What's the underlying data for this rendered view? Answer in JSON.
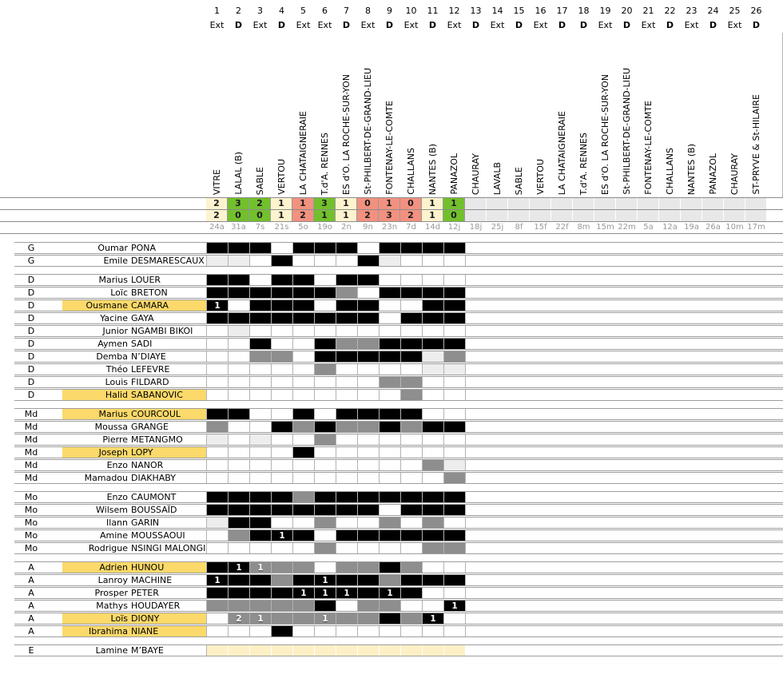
{
  "palette": {
    "win_green": "#72c02c",
    "draw_cream": "#fdf3cf",
    "loss_salmon": "#f29180",
    "empty_gray": "#e8e8e8",
    "name_highlight_yellow": "#fbd96a",
    "squad_row_cream": "#fdf0c6",
    "cell_full_black": "#000000",
    "cell_sub_gray": "#8e8e8e",
    "cell_light_gray": "#ededed"
  },
  "cell_codes": {
    "B": "black cell",
    "G": "gray cell",
    "L": "light-gray cell",
    "Y": "cream cell",
    "": "white cell",
    "digit_suffix": "goal count shown in cell"
  },
  "columns": [
    {
      "n": "1",
      "venue": "Ext",
      "opponent": "VITRE",
      "score_top": "2",
      "score_bottom": "2",
      "result": "draw",
      "date": "24a"
    },
    {
      "n": "2",
      "venue": "D",
      "opponent": "LALAL (B)",
      "score_top": "3",
      "score_bottom": "0",
      "result": "win",
      "date": "31a"
    },
    {
      "n": "3",
      "venue": "Ext",
      "opponent": "SABLE",
      "score_top": "2",
      "score_bottom": "0",
      "result": "win",
      "date": "7s"
    },
    {
      "n": "4",
      "venue": "D",
      "opponent": "VERTOU",
      "score_top": "1",
      "score_bottom": "1",
      "result": "draw",
      "date": "21s"
    },
    {
      "n": "5",
      "venue": "Ext",
      "opponent": "LA CHATAIGNERAIE",
      "score_top": "1",
      "score_bottom": "2",
      "result": "loss",
      "date": "5o"
    },
    {
      "n": "6",
      "venue": "Ext",
      "opponent": "T.d'A. RENNES",
      "score_top": "3",
      "score_bottom": "1",
      "result": "win",
      "date": "19o"
    },
    {
      "n": "7",
      "venue": "D",
      "opponent": "ES d'O. LA ROCHE-SUR-YON",
      "score_top": "1",
      "score_bottom": "1",
      "result": "draw",
      "date": "2n"
    },
    {
      "n": "8",
      "venue": "Ext",
      "opponent": "St-PHILBERT-DE-GRAND-LIEU",
      "score_top": "0",
      "score_bottom": "2",
      "result": "loss",
      "date": "9n"
    },
    {
      "n": "9",
      "venue": "D",
      "opponent": "FONTENAY-LE-COMTE",
      "score_top": "1",
      "score_bottom": "3",
      "result": "loss",
      "date": "23n"
    },
    {
      "n": "10",
      "venue": "Ext",
      "opponent": "CHALLANS",
      "score_top": "0",
      "score_bottom": "2",
      "result": "loss",
      "date": "7d"
    },
    {
      "n": "11",
      "venue": "D",
      "opponent": "NANTES (B)",
      "score_top": "1",
      "score_bottom": "1",
      "result": "draw",
      "date": "14d"
    },
    {
      "n": "12",
      "venue": "Ext",
      "opponent": "PANAZOL",
      "score_top": "1",
      "score_bottom": "0",
      "result": "win",
      "date": "12j"
    },
    {
      "n": "13",
      "venue": "D",
      "opponent": "CHAURAY",
      "score_top": "",
      "score_bottom": "",
      "result": "none",
      "date": "18j"
    },
    {
      "n": "14",
      "venue": "Ext",
      "opponent": "LAVALB",
      "score_top": "",
      "score_bottom": "",
      "result": "none",
      "date": "25j"
    },
    {
      "n": "15",
      "venue": "D",
      "opponent": "SABLE",
      "score_top": "",
      "score_bottom": "",
      "result": "none",
      "date": "8f"
    },
    {
      "n": "16",
      "venue": "Ext",
      "opponent": "VERTOU",
      "score_top": "",
      "score_bottom": "",
      "result": "none",
      "date": "15f"
    },
    {
      "n": "17",
      "venue": "D",
      "opponent": "LA CHATAIGNERAIE",
      "score_top": "",
      "score_bottom": "",
      "result": "none",
      "date": "22f"
    },
    {
      "n": "18",
      "venue": "D",
      "opponent": "T.d'A. RENNES",
      "score_top": "",
      "score_bottom": "",
      "result": "none",
      "date": "8m"
    },
    {
      "n": "19",
      "venue": "Ext",
      "opponent": "ES d'O. LA ROCHE-SUR-YON",
      "score_top": "",
      "score_bottom": "",
      "result": "none",
      "date": "15m"
    },
    {
      "n": "20",
      "venue": "D",
      "opponent": "St-PHILBERT-DE-GRAND-LIEU",
      "score_top": "",
      "score_bottom": "",
      "result": "none",
      "date": "22m"
    },
    {
      "n": "21",
      "venue": "Ext",
      "opponent": "FONTENAY-LE-COMTE",
      "score_top": "",
      "score_bottom": "",
      "result": "none",
      "date": "5a"
    },
    {
      "n": "22",
      "venue": "D",
      "opponent": "CHALLANS",
      "score_top": "",
      "score_bottom": "",
      "result": "none",
      "date": "12a"
    },
    {
      "n": "23",
      "venue": "Ext",
      "opponent": "NANTES (B)",
      "score_top": "",
      "score_bottom": "",
      "result": "none",
      "date": "19a"
    },
    {
      "n": "24",
      "venue": "D",
      "opponent": "PANAZOL",
      "score_top": "",
      "score_bottom": "",
      "result": "none",
      "date": "26a"
    },
    {
      "n": "25",
      "venue": "Ext",
      "opponent": "CHAURAY",
      "score_top": "",
      "score_bottom": "",
      "result": "none",
      "date": "10m"
    },
    {
      "n": "26",
      "venue": "D",
      "opponent": "ST-PRYVE & St-HILAIRE",
      "score_top": "",
      "score_bottom": "",
      "result": "none",
      "date": "17m"
    }
  ],
  "sections": [
    {
      "code": "G",
      "players": [
        {
          "first": "Oumar",
          "last": "PONA",
          "hl": false,
          "cells": [
            "B",
            "B",
            "B",
            "",
            "B",
            "B",
            "B",
            "",
            "B",
            "B",
            "B",
            "B"
          ]
        },
        {
          "first": "Emile",
          "last": "DESMARESCAUX",
          "hl": false,
          "cells": [
            "L",
            "L",
            "",
            "B",
            "",
            "",
            "",
            "B",
            "L",
            "",
            "",
            ""
          ]
        }
      ]
    },
    {
      "code": "D",
      "players": [
        {
          "first": "Marius",
          "last": "LOUER",
          "hl": false,
          "cells": [
            "B",
            "B",
            "",
            "B",
            "B",
            "",
            "B",
            "B",
            "",
            "",
            "",
            ""
          ]
        },
        {
          "first": "Loïc",
          "last": "BRETON",
          "hl": false,
          "cells": [
            "B",
            "B",
            "B",
            "B",
            "B",
            "B",
            "G",
            "",
            "B",
            "B",
            "B",
            "B"
          ]
        },
        {
          "first": "Ousmane",
          "last": "CAMARA",
          "hl": true,
          "cells": [
            "B1",
            "",
            "B",
            "B",
            "B",
            "",
            "B",
            "B",
            "",
            "",
            "B",
            "B"
          ]
        },
        {
          "first": "Yacine",
          "last": "GAYA",
          "hl": false,
          "cells": [
            "B",
            "B",
            "B",
            "B",
            "B",
            "B",
            "B",
            "B",
            "",
            "B",
            "B",
            "B"
          ]
        },
        {
          "first": "Junior",
          "last": "NGAMBI BIKOI",
          "hl": false,
          "cells": [
            "",
            "L",
            "",
            "",
            "",
            "",
            "",
            "",
            "",
            "",
            "",
            ""
          ]
        },
        {
          "first": "Aymen",
          "last": "SADI",
          "hl": false,
          "cells": [
            "",
            "",
            "B",
            "",
            "",
            "B",
            "G",
            "G",
            "B",
            "B",
            "B",
            "B"
          ]
        },
        {
          "first": "Demba",
          "last": "N’DIAYE",
          "hl": false,
          "cells": [
            "",
            "",
            "G",
            "G",
            "",
            "B",
            "B",
            "B",
            "B",
            "B",
            "L",
            "G"
          ]
        },
        {
          "first": "Théo",
          "last": "LEFEVRE",
          "hl": false,
          "cells": [
            "",
            "",
            "",
            "",
            "",
            "G",
            "",
            "",
            "",
            "",
            "L",
            "L"
          ]
        },
        {
          "first": "Louis",
          "last": "FILDARD",
          "hl": false,
          "cells": [
            "",
            "",
            "",
            "",
            "",
            "",
            "",
            "",
            "G",
            "G",
            "",
            ""
          ]
        },
        {
          "first": "Halid",
          "last": "SABANOVIC",
          "hl": true,
          "cells": [
            "",
            "",
            "",
            "",
            "",
            "",
            "",
            "",
            "",
            "G",
            "",
            ""
          ]
        }
      ]
    },
    {
      "code": "Md",
      "players": [
        {
          "first": "Marius",
          "last": "COURCOUL",
          "hl": true,
          "cells": [
            "B",
            "B",
            "",
            "",
            "B",
            "",
            "B",
            "B",
            "B",
            "B",
            "",
            ""
          ]
        },
        {
          "first": "Moussa",
          "last": "GRANGE",
          "hl": false,
          "cells": [
            "G",
            "",
            "",
            "B",
            "G",
            "B",
            "G",
            "G",
            "B",
            "G",
            "B",
            "B"
          ]
        },
        {
          "first": "Pierre",
          "last": "METANGMO",
          "hl": false,
          "cells": [
            "L",
            "",
            "L",
            "",
            "",
            "G",
            "",
            "",
            "",
            "",
            "",
            ""
          ]
        },
        {
          "first": "Joseph",
          "last": "LOPY",
          "hl": true,
          "cells": [
            "",
            "",
            "",
            "",
            "B",
            "",
            "",
            "",
            "",
            "",
            "",
            ""
          ]
        },
        {
          "first": "Enzo",
          "last": "NANOR",
          "hl": false,
          "cells": [
            "",
            "",
            "",
            "",
            "",
            "",
            "",
            "",
            "",
            "",
            "G",
            "L"
          ]
        },
        {
          "first": "Mamadou",
          "last": "DIAKHABY",
          "hl": false,
          "cells": [
            "",
            "",
            "",
            "",
            "",
            "",
            "",
            "",
            "",
            "",
            "",
            "G"
          ]
        }
      ]
    },
    {
      "code": "Mo",
      "players": [
        {
          "first": "Enzo",
          "last": "CAUMONT",
          "hl": false,
          "cells": [
            "B",
            "B",
            "B",
            "B",
            "G",
            "B",
            "B",
            "B",
            "B",
            "B",
            "B",
            "B"
          ]
        },
        {
          "first": "Wilsem",
          "last": "BOUSSAÏD",
          "hl": false,
          "cells": [
            "B",
            "B",
            "B",
            "B",
            "B",
            "B",
            "B",
            "B",
            "",
            "B",
            "B",
            "B"
          ]
        },
        {
          "first": "Ilann",
          "last": "GARIN",
          "hl": false,
          "cells": [
            "L",
            "B",
            "B",
            "",
            "",
            "G",
            "",
            "",
            "G",
            "",
            "G",
            ""
          ]
        },
        {
          "first": "Amine",
          "last": "MOUSSAOUI",
          "hl": false,
          "cells": [
            "",
            "G",
            "B",
            "B1",
            "B",
            "",
            "B",
            "B",
            "B",
            "B",
            "B",
            "B"
          ]
        },
        {
          "first": "Rodrigue",
          "last": "NSINGI MALONGI",
          "hl": false,
          "cells": [
            "",
            "",
            "",
            "",
            "",
            "G",
            "",
            "",
            "",
            "",
            "G",
            "G"
          ]
        }
      ]
    },
    {
      "code": "A",
      "players": [
        {
          "first": "Adrien",
          "last": "HUNOU",
          "hl": true,
          "cells": [
            "B",
            "B1",
            "G1",
            "G",
            "G",
            "",
            "G",
            "G",
            "B",
            "G",
            "",
            ""
          ]
        },
        {
          "first": "Lanroy",
          "last": "MACHINE",
          "hl": false,
          "cells": [
            "B1",
            "B",
            "B",
            "G",
            "B",
            "B1",
            "B",
            "B",
            "G",
            "B",
            "B",
            "B"
          ]
        },
        {
          "first": "Prosper",
          "last": "PETER",
          "hl": false,
          "cells": [
            "B",
            "B",
            "B",
            "B",
            "B1",
            "B1",
            "B1",
            "B",
            "B1",
            "B",
            "",
            ""
          ]
        },
        {
          "first": "Mathys",
          "last": "HOUDAYER",
          "hl": false,
          "cells": [
            "G",
            "G",
            "G",
            "G",
            "G",
            "B",
            "",
            "G",
            "G",
            "",
            "",
            "B1"
          ]
        },
        {
          "first": "Loïs",
          "last": "DIONY",
          "hl": true,
          "cells": [
            "",
            "G2",
            "G1",
            "G",
            "G",
            "G1",
            "G",
            "G",
            "B",
            "G",
            "B1",
            ""
          ]
        },
        {
          "first": "Ibrahima",
          "last": "NIANE",
          "hl": true,
          "cells": [
            "",
            "",
            "",
            "B",
            "",
            "",
            "",
            "",
            "",
            "",
            "",
            ""
          ]
        }
      ]
    },
    {
      "code": "E",
      "players": [
        {
          "first": "Lamine",
          "last": "M’BAYE",
          "hl": false,
          "cells": [
            "Y",
            "Y",
            "Y",
            "Y",
            "Y",
            "Y",
            "Y",
            "Y",
            "Y",
            "Y",
            "Y",
            "Y"
          ]
        }
      ]
    }
  ]
}
